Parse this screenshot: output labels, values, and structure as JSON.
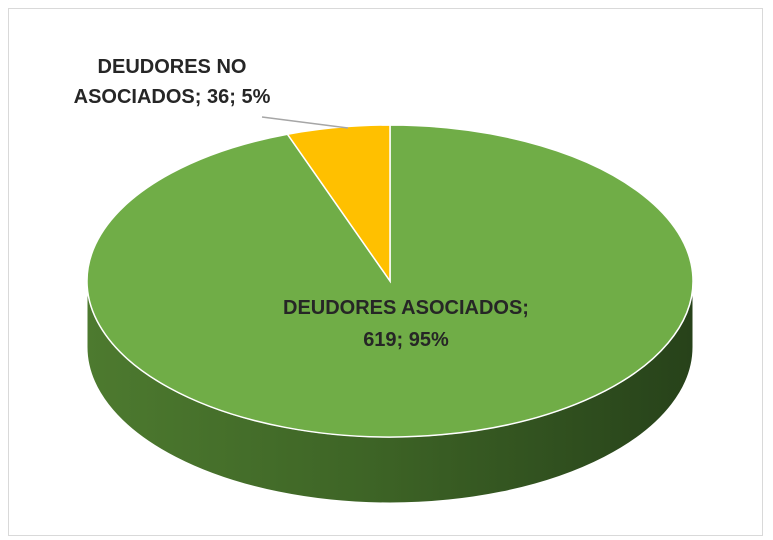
{
  "chart_data": {
    "type": "pie",
    "title": "",
    "slices": [
      {
        "name": "DEUDORES ASOCIADOS",
        "value": 619,
        "percent": 95,
        "color": "#70ad47"
      },
      {
        "name": "DEUDORES NO ASOCIADOS",
        "value": 36,
        "percent": 5,
        "color": "#ffc000"
      }
    ],
    "labels": {
      "asociados_line1": "DEUDORES ASOCIADOS;",
      "asociados_line2": "619; 95%",
      "no_asociados_line1": "DEUDORES NO",
      "no_asociados_line2": "ASOCIADOS; 36; 5%"
    },
    "style": "3d-pie",
    "legend": "none"
  }
}
